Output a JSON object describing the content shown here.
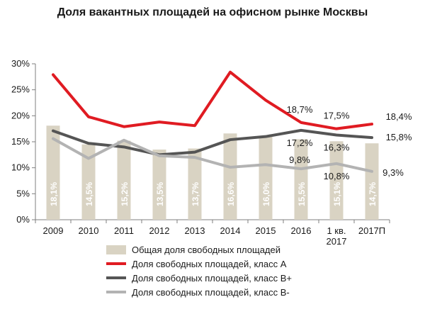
{
  "chart_data": {
    "type": "bar",
    "title": "Доля вакантных площадей на офисном рынке Москвы",
    "categories": [
      "2009",
      "2010",
      "2011",
      "2012",
      "2013",
      "2014",
      "2015",
      "2016",
      "1 кв.\n2017",
      "2017П"
    ],
    "ylim": [
      0,
      30
    ],
    "yticks": [
      "0%",
      "5%",
      "10%",
      "15%",
      "20%",
      "25%",
      "30%"
    ],
    "yticks_values": [
      0,
      5,
      10,
      15,
      20,
      25,
      30
    ],
    "bars": {
      "name": "Общая доля свободных площадей",
      "color": "#d9d3c3",
      "values": [
        18.1,
        14.5,
        15.2,
        13.5,
        13.7,
        16.6,
        16.0,
        15.5,
        15.1,
        14.7
      ],
      "labels": [
        "18,1%",
        "14,5%",
        "15,2%",
        "13,5%",
        "13,7%",
        "16,6%",
        "16,0%",
        "15,5%",
        "15,1%",
        "14,7%"
      ]
    },
    "series": [
      {
        "name": "Доля свободных площадей, класс А",
        "color": "#e01b22",
        "values": [
          27.9,
          19.8,
          17.9,
          18.8,
          18.1,
          28.4,
          23.0,
          18.7,
          17.5,
          18.4
        ],
        "point_labels": [
          null,
          null,
          null,
          null,
          null,
          null,
          null,
          "18,7%",
          "17,5%",
          "18,4%"
        ]
      },
      {
        "name": "Доля свободных площадей, класс В+",
        "color": "#555555",
        "values": [
          17.1,
          14.7,
          14.0,
          12.5,
          13.0,
          15.4,
          16.0,
          17.2,
          16.3,
          15.8
        ],
        "point_labels": [
          null,
          null,
          null,
          null,
          null,
          null,
          null,
          "17,2%",
          "16,3%",
          "15,8%"
        ]
      },
      {
        "name": "Доля свободных площадей, класс В-",
        "color": "#b3b3b3",
        "values": [
          15.6,
          11.8,
          15.3,
          12.3,
          12.0,
          10.1,
          10.6,
          9.8,
          10.8,
          9.3
        ],
        "point_labels": [
          null,
          null,
          null,
          null,
          null,
          null,
          null,
          "9,8%",
          "10,8%",
          "9,3%"
        ]
      }
    ],
    "legend": "bottom",
    "grid": false
  }
}
